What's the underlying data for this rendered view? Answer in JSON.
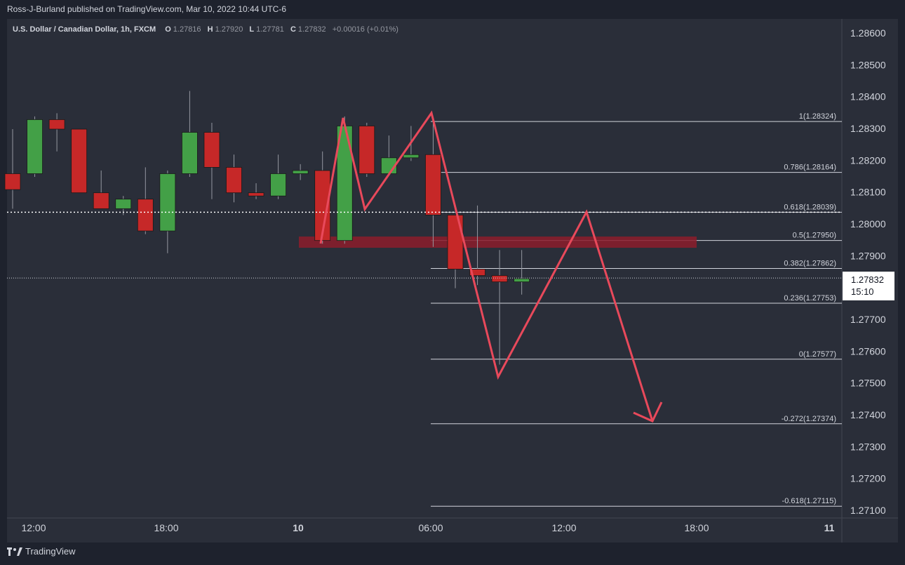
{
  "header": {
    "published_text": "Ross-J-Burland published on TradingView.com, Mar 10, 2022 10:44 UTC-6"
  },
  "legend": {
    "symbol": "U.S. Dollar / Canadian Dollar, 1h, FXCM",
    "o_label": "O",
    "o_value": "1.27816",
    "h_label": "H",
    "h_value": "1.27920",
    "l_label": "L",
    "l_value": "1.27781",
    "c_label": "C",
    "c_value": "1.27832",
    "change": "+0.00016 (+0.01%)"
  },
  "footer": {
    "brand": "TradingView"
  },
  "colors": {
    "up": "#43a047",
    "down": "#c62828",
    "drawing": "#e8495b",
    "zone": "#8c1c2c"
  },
  "chart_data": {
    "type": "candlestick",
    "price_axis_ticks": [
      "1.28600",
      "1.28500",
      "1.28400",
      "1.28300",
      "1.28200",
      "1.28100",
      "1.28000",
      "1.27900",
      "1.27700",
      "1.27600",
      "1.27500",
      "1.27400",
      "1.27300",
      "1.27200",
      "1.27100"
    ],
    "time_axis_ticks": [
      "12:00",
      "18:00",
      "10",
      "06:00",
      "12:00",
      "18:00",
      "11"
    ],
    "current_price": "1.27832",
    "countdown": "15:10",
    "ylim": [
      1.2708,
      1.2867
    ],
    "candles": [
      {
        "o": 1.2816,
        "h": 1.283,
        "l": 1.2805,
        "c": 1.2811
      },
      {
        "o": 1.2816,
        "h": 1.2834,
        "l": 1.2815,
        "c": 1.2833
      },
      {
        "o": 1.2833,
        "h": 1.2835,
        "l": 1.2823,
        "c": 1.283
      },
      {
        "o": 1.283,
        "h": 1.283,
        "l": 1.281,
        "c": 1.281
      },
      {
        "o": 1.281,
        "h": 1.2817,
        "l": 1.2805,
        "c": 1.2805
      },
      {
        "o": 1.2805,
        "h": 1.2809,
        "l": 1.2803,
        "c": 1.2808
      },
      {
        "o": 1.2808,
        "h": 1.2818,
        "l": 1.2797,
        "c": 1.2798
      },
      {
        "o": 1.2798,
        "h": 1.2817,
        "l": 1.2791,
        "c": 1.2816
      },
      {
        "o": 1.2816,
        "h": 1.2842,
        "l": 1.2815,
        "c": 1.2829
      },
      {
        "o": 1.2829,
        "h": 1.2832,
        "l": 1.2808,
        "c": 1.2818
      },
      {
        "o": 1.2818,
        "h": 1.2822,
        "l": 1.2807,
        "c": 1.281
      },
      {
        "o": 1.281,
        "h": 1.2813,
        "l": 1.2808,
        "c": 1.2809
      },
      {
        "o": 1.2809,
        "h": 1.2822,
        "l": 1.2808,
        "c": 1.2816
      },
      {
        "o": 1.2816,
        "h": 1.2819,
        "l": 1.2814,
        "c": 1.2817
      },
      {
        "o": 1.2817,
        "h": 1.2823,
        "l": 1.2794,
        "c": 1.2795
      },
      {
        "o": 1.2795,
        "h": 1.2834,
        "l": 1.2794,
        "c": 1.2831
      },
      {
        "o": 1.2831,
        "h": 1.2832,
        "l": 1.2815,
        "c": 1.2816
      },
      {
        "o": 1.2816,
        "h": 1.2828,
        "l": 1.2816,
        "c": 1.2821
      },
      {
        "o": 1.2821,
        "h": 1.2831,
        "l": 1.282,
        "c": 1.2822
      },
      {
        "o": 1.2822,
        "h": 1.2832,
        "l": 1.2793,
        "c": 1.2803
      },
      {
        "o": 1.2803,
        "h": 1.2803,
        "l": 1.278,
        "c": 1.2786
      },
      {
        "o": 1.2786,
        "h": 1.2806,
        "l": 1.2781,
        "c": 1.2784
      },
      {
        "o": 1.2784,
        "h": 1.2792,
        "l": 1.2756,
        "c": 1.2782
      },
      {
        "o": 1.2782,
        "h": 1.2792,
        "l": 1.2778,
        "c": 1.2783
      }
    ],
    "fib_levels": [
      {
        "label": "1(1.28324)",
        "value": 1.28324
      },
      {
        "label": "0.786(1.28164)",
        "value": 1.28164
      },
      {
        "label": "0.618(1.28039)",
        "value": 1.28039
      },
      {
        "label": "0.5(1.27950)",
        "value": 1.2795
      },
      {
        "label": "0.382(1.27862)",
        "value": 1.27862
      },
      {
        "label": "0.236(1.27753)",
        "value": 1.27753
      },
      {
        "label": "0(1.27577)",
        "value": 1.27577
      },
      {
        "label": "-0.272(1.27374)",
        "value": 1.27374
      },
      {
        "label": "-0.618(1.27115)",
        "value": 1.27115
      }
    ]
  }
}
